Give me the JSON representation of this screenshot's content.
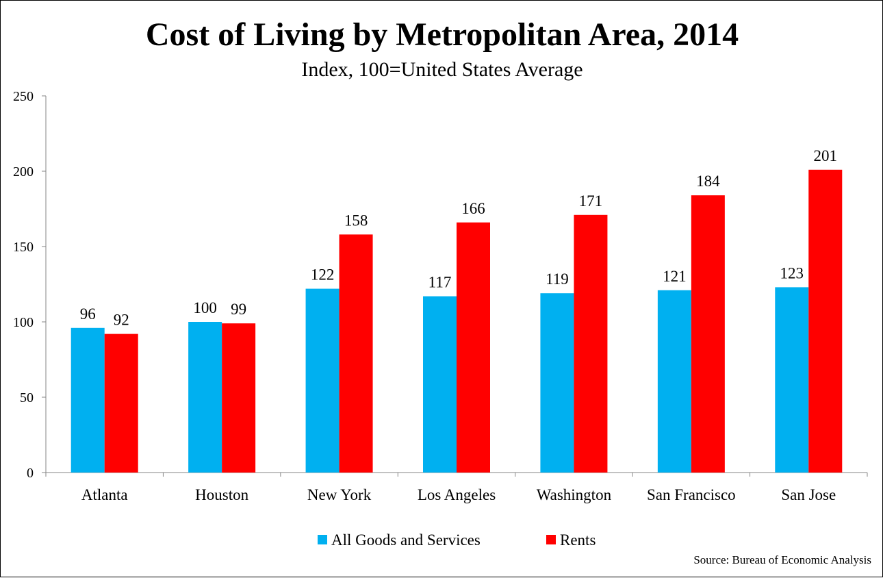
{
  "chart_data": {
    "type": "bar",
    "title": "Cost of Living by Metropolitan Area, 2014",
    "subtitle": "Index, 100=United States Average",
    "categories": [
      "Atlanta",
      "Houston",
      "New York",
      "Los Angeles",
      "Washington",
      "San Francisco",
      "San Jose"
    ],
    "series": [
      {
        "name": "All Goods and Services",
        "color": "#00B0F0",
        "values": [
          96,
          100,
          122,
          117,
          119,
          121,
          123
        ]
      },
      {
        "name": "Rents",
        "color": "#FF0000",
        "values": [
          92,
          99,
          158,
          166,
          171,
          184,
          201
        ]
      }
    ],
    "ylim": [
      0,
      250
    ],
    "yticks": [
      0,
      50,
      100,
      150,
      200,
      250
    ],
    "grid": false,
    "legend_position": "bottom",
    "data_labels": true,
    "xlabel": "",
    "ylabel": ""
  },
  "source_note": "Source: Bureau of Economic Analysis"
}
